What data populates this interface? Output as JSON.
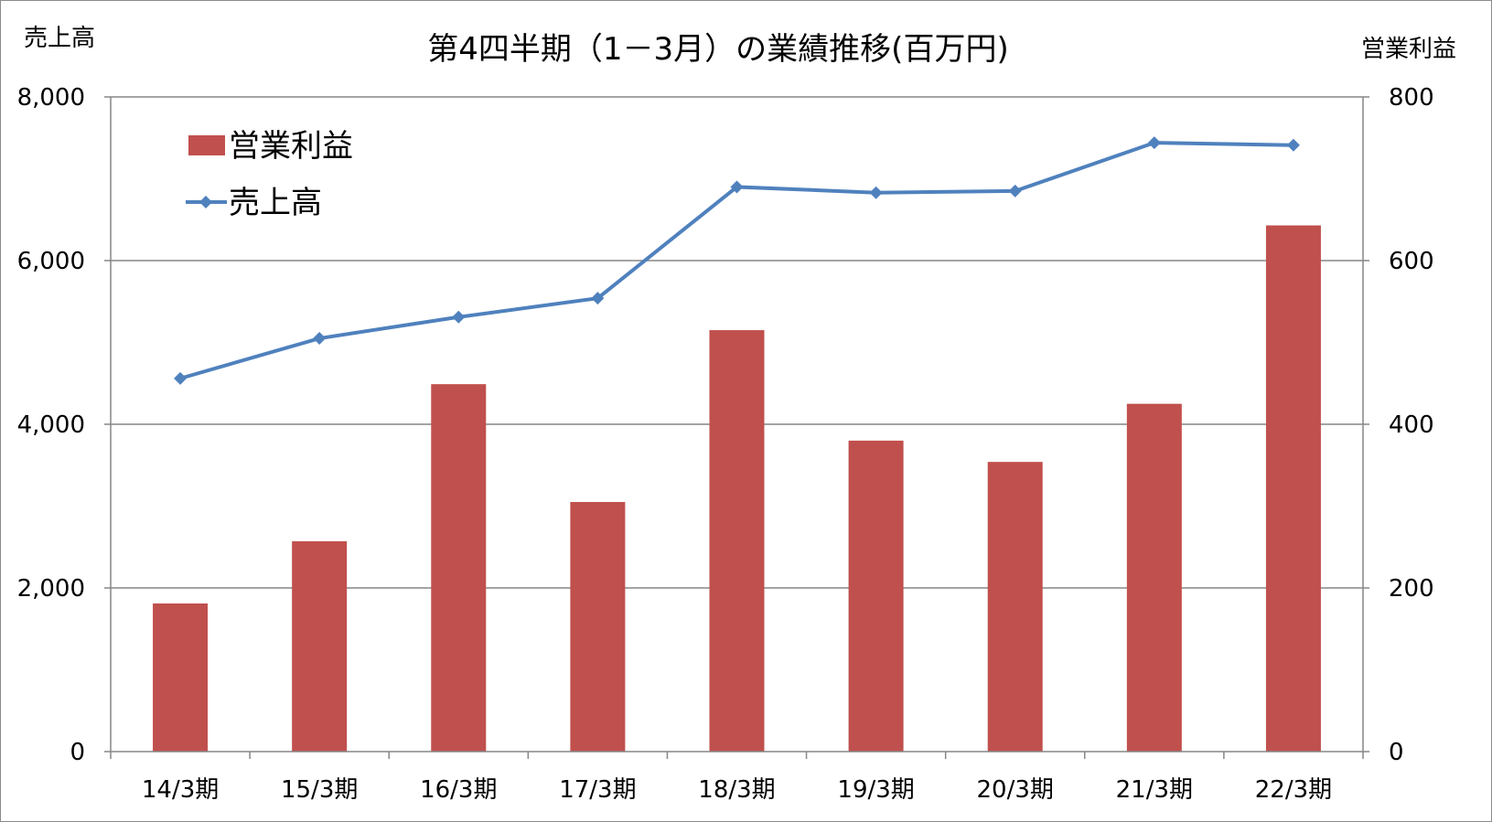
{
  "chart_data": {
    "type": "bar+line",
    "title": "第4四半期（1－3月）の業績推移(百万円)",
    "categories": [
      "14/3期",
      "15/3期",
      "16/3期",
      "17/3期",
      "18/3期",
      "19/3期",
      "20/3期",
      "21/3期",
      "22/3期"
    ],
    "y_left": {
      "label": "売上高",
      "ylim": [
        0,
        8000
      ],
      "ticks": [
        0,
        2000,
        4000,
        6000,
        8000
      ],
      "tick_labels": [
        "0",
        "2,000",
        "4,000",
        "6,000",
        "8,000"
      ]
    },
    "y_right": {
      "label": "営業利益",
      "ylim": [
        0,
        800
      ],
      "ticks": [
        0,
        200,
        400,
        600,
        800
      ],
      "tick_labels": [
        "0",
        "200",
        "400",
        "600",
        "800"
      ]
    },
    "series": [
      {
        "name": "営業利益",
        "type": "bar",
        "axis": "right",
        "color": "#c0504d",
        "values": [
          181,
          257,
          449,
          305,
          515,
          380,
          354,
          425,
          643
        ]
      },
      {
        "name": "売上高",
        "type": "line",
        "axis": "left",
        "color": "#4f81bd",
        "marker": "diamond",
        "values": [
          4560,
          5050,
          5310,
          5540,
          6900,
          6830,
          6850,
          7440,
          7410
        ]
      }
    ],
    "grid": true,
    "legend_placement": "top-left"
  }
}
